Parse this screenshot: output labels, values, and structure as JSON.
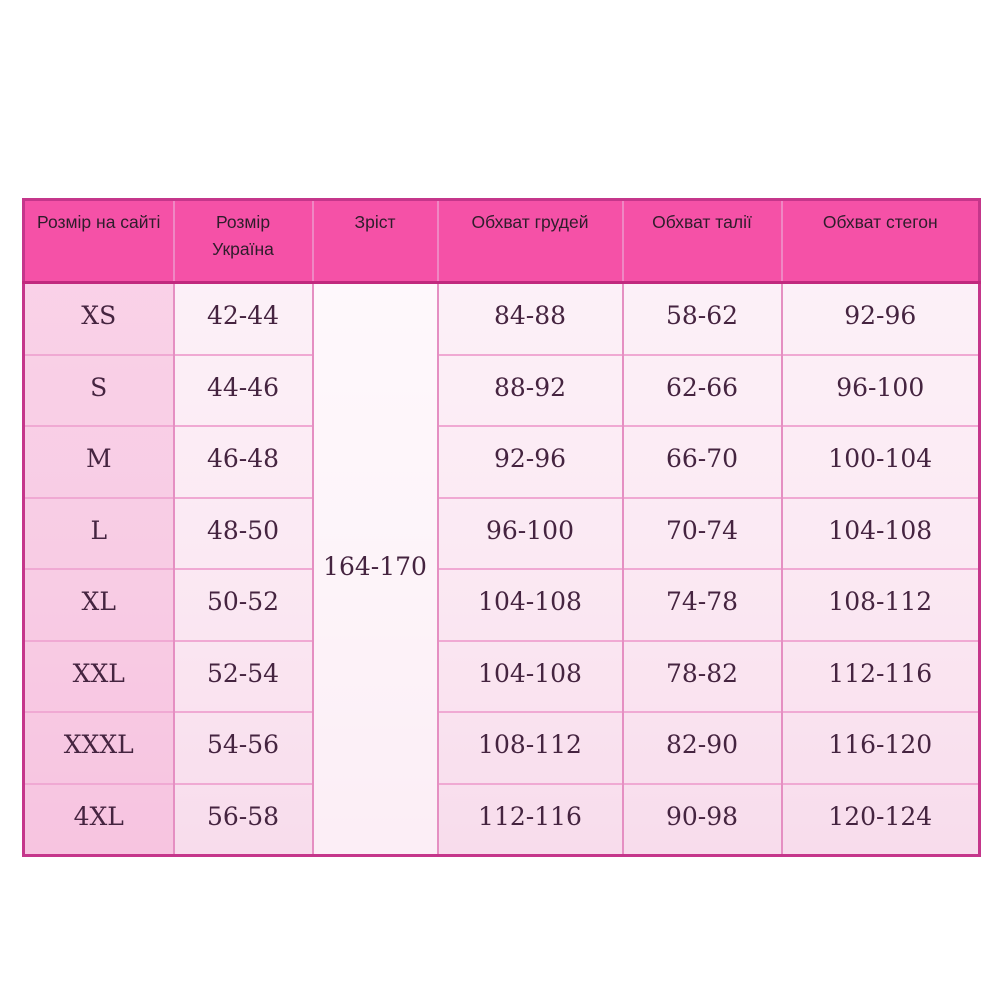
{
  "page": {
    "background_color": "#ffffff",
    "accent_pink": "#f551a7",
    "border_magenta": "#c5368b",
    "grid_pink": "#e58fc2",
    "text_dark": "#452440"
  },
  "chart_data": {
    "type": "table",
    "title": "",
    "columns": [
      "Розмір на сайті",
      "Розмір Україна",
      "Зріст",
      "Обхват грудей",
      "Обхват талії",
      "Обхват стегон"
    ],
    "merged_height_value": "164-170",
    "merged_height_column": "Зріст",
    "rows": [
      {
        "site_size": "XS",
        "ua_size": "42-44",
        "height": "164-170",
        "chest": "84-88",
        "waist": "58-62",
        "hips": "92-96"
      },
      {
        "site_size": "S",
        "ua_size": "44-46",
        "height": "164-170",
        "chest": "88-92",
        "waist": "62-66",
        "hips": "96-100"
      },
      {
        "site_size": "M",
        "ua_size": "46-48",
        "height": "164-170",
        "chest": "92-96",
        "waist": "66-70",
        "hips": "100-104"
      },
      {
        "site_size": "L",
        "ua_size": "48-50",
        "height": "164-170",
        "chest": "96-100",
        "waist": "70-74",
        "hips": "104-108"
      },
      {
        "site_size": "XL",
        "ua_size": "50-52",
        "height": "164-170",
        "chest": "104-108",
        "waist": "74-78",
        "hips": "108-112"
      },
      {
        "site_size": "XXL",
        "ua_size": "52-54",
        "height": "164-170",
        "chest": "104-108",
        "waist": "78-82",
        "hips": "112-116"
      },
      {
        "site_size": "XXXL",
        "ua_size": "54-56",
        "height": "164-170",
        "chest": "108-112",
        "waist": "82-90",
        "hips": "116-120"
      },
      {
        "site_size": "4XL",
        "ua_size": "56-58",
        "height": "164-170",
        "chest": "112-116",
        "waist": "90-98",
        "hips": "120-124"
      }
    ]
  }
}
